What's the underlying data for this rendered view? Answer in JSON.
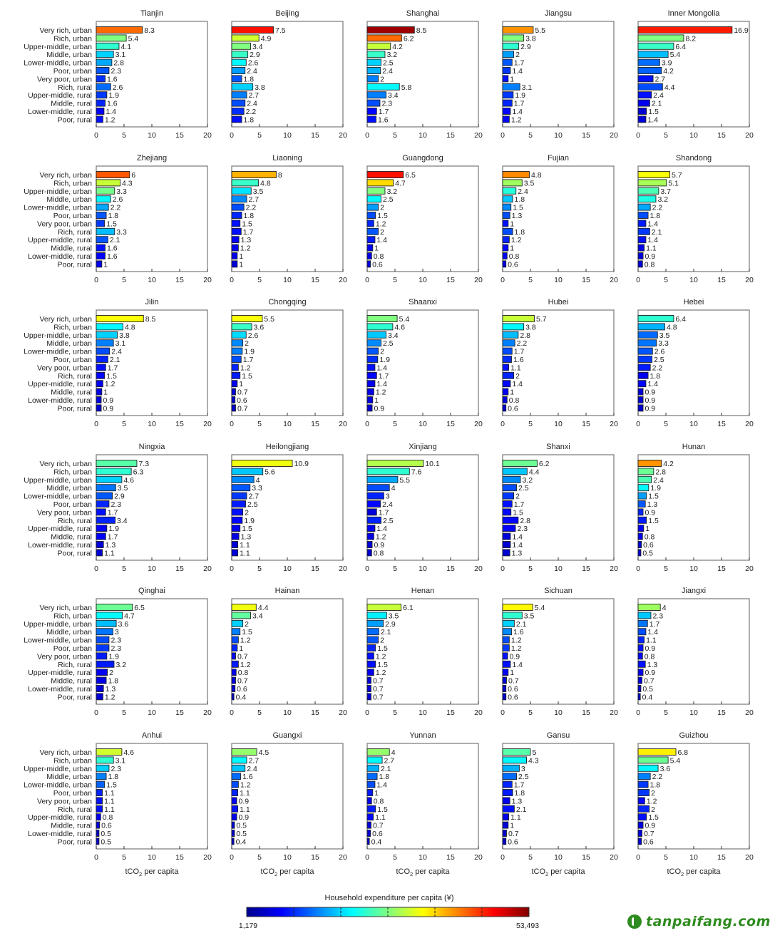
{
  "chart_data": {
    "type": "bar",
    "orientation": "horizontal",
    "categories": [
      "Very rich, urban",
      "Rich, urban",
      "Upper-middle, urban",
      "Middle, urban",
      "Lower-middle, urban",
      "Poor, urban",
      "Very poor, urban",
      "Rich, rural",
      "Upper-middle, rural",
      "Middle, rural",
      "Lower-middle, rural",
      "Poor, rural"
    ],
    "xlim": [
      0,
      20
    ],
    "xticks": [
      "0",
      "5",
      "10",
      "15",
      "20"
    ],
    "xlabel": "tCO₂ per capita",
    "panels": [
      {
        "title": "Tianjin",
        "values": [
          8.3,
          5.4,
          4.1,
          3.1,
          2.8,
          2.3,
          1.6,
          2.6,
          1.9,
          1.6,
          1.4,
          1.2
        ],
        "color_levels": [
          0.77,
          0.5,
          0.42,
          0.33,
          0.29,
          0.21,
          0.17,
          0.23,
          0.18,
          0.16,
          0.12,
          0.14
        ]
      },
      {
        "title": "Beijing",
        "values": [
          7.5,
          4.9,
          3.4,
          2.9,
          2.6,
          2.4,
          1.8,
          3.8,
          2.7,
          2.4,
          2.2,
          1.8
        ],
        "color_levels": [
          0.86,
          0.58,
          0.5,
          0.43,
          0.37,
          0.28,
          0.21,
          0.33,
          0.25,
          0.2,
          0.17,
          0.14
        ]
      },
      {
        "title": "Shanghai",
        "values": [
          8.5,
          6.2,
          4.2,
          3.2,
          2.5,
          2.4,
          2,
          5.8,
          3.4,
          2.3,
          1.7,
          1.6
        ],
        "color_levels": [
          0.97,
          0.77,
          0.57,
          0.43,
          0.33,
          0.3,
          0.25,
          0.37,
          0.25,
          0.2,
          0.13,
          0.14
        ]
      },
      {
        "title": "Jiangsu",
        "values": [
          5.5,
          3.8,
          2.9,
          2,
          1.7,
          1.4,
          1,
          3.1,
          1.9,
          1.7,
          1.4,
          1.2
        ],
        "color_levels": [
          0.73,
          0.5,
          0.42,
          0.28,
          0.21,
          0.18,
          0.14,
          0.25,
          0.18,
          0.16,
          0.13,
          0.13
        ]
      },
      {
        "title": "Inner Mongolia",
        "values": [
          16.9,
          8.2,
          6.4,
          5.4,
          3.9,
          4.2,
          2.7,
          4.4,
          2.4,
          2.1,
          1.5,
          1.4
        ],
        "color_levels": [
          0.85,
          0.5,
          0.43,
          0.31,
          0.23,
          0.22,
          0.14,
          0.2,
          0.14,
          0.11,
          0.08,
          0.09
        ]
      },
      {
        "title": "Zhejiang",
        "values": [
          6,
          4.3,
          3.3,
          2.6,
          2.2,
          1.8,
          1.5,
          3.3,
          2.1,
          1.6,
          1.6,
          1
        ],
        "color_levels": [
          0.79,
          0.57,
          0.49,
          0.37,
          0.29,
          0.21,
          0.18,
          0.31,
          0.21,
          0.14,
          0.12,
          0.11
        ]
      },
      {
        "title": "Liaoning",
        "values": [
          8,
          4.8,
          3.5,
          2.7,
          2.2,
          1.8,
          1.5,
          1.7,
          1.3,
          1.2,
          1,
          1
        ],
        "color_levels": [
          0.7,
          0.43,
          0.35,
          0.26,
          0.2,
          0.16,
          0.14,
          0.14,
          0.12,
          0.11,
          0.1,
          0.09
        ]
      },
      {
        "title": "Guangdong",
        "values": [
          6.5,
          4.7,
          3.2,
          2.5,
          2,
          1.5,
          1.2,
          2,
          1.4,
          1,
          0.8,
          0.6
        ],
        "color_levels": [
          0.86,
          0.66,
          0.5,
          0.37,
          0.28,
          0.2,
          0.16,
          0.21,
          0.15,
          0.11,
          0.1,
          0.09
        ]
      },
      {
        "title": "Fujian",
        "values": [
          4.8,
          3.5,
          2.4,
          1.8,
          1.5,
          1.3,
          1,
          1.8,
          1.2,
          1,
          0.8,
          0.6
        ],
        "color_levels": [
          0.74,
          0.53,
          0.41,
          0.32,
          0.26,
          0.2,
          0.14,
          0.2,
          0.16,
          0.13,
          0.11,
          0.1
        ]
      },
      {
        "title": "Shandong",
        "values": [
          5.7,
          5.1,
          3.7,
          3.2,
          2.2,
          1.8,
          1.4,
          2.1,
          1.4,
          1.1,
          0.9,
          0.8
        ],
        "color_levels": [
          0.62,
          0.54,
          0.45,
          0.4,
          0.29,
          0.2,
          0.15,
          0.18,
          0.14,
          0.1,
          0.09,
          0.09
        ]
      },
      {
        "title": "Jilin",
        "values": [
          8.5,
          4.8,
          3.8,
          3.1,
          2.4,
          2.1,
          1.7,
          1.5,
          1.2,
          1,
          0.9,
          0.9
        ],
        "color_levels": [
          0.62,
          0.37,
          0.33,
          0.25,
          0.2,
          0.16,
          0.14,
          0.13,
          0.11,
          0.1,
          0.09,
          0.08
        ]
      },
      {
        "title": "Chongqing",
        "values": [
          5.5,
          3.6,
          2.6,
          2,
          1.9,
          1.7,
          1.2,
          1.5,
          1,
          0.7,
          0.6,
          0.7
        ],
        "color_levels": [
          0.62,
          0.43,
          0.34,
          0.26,
          0.25,
          0.2,
          0.16,
          0.15,
          0.11,
          0.09,
          0.08,
          0.08
        ]
      },
      {
        "title": "Shaanxi",
        "values": [
          5.4,
          4.6,
          3.4,
          2.5,
          2,
          1.9,
          1.4,
          1.7,
          1.4,
          1.2,
          1,
          0.9
        ],
        "color_levels": [
          0.5,
          0.42,
          0.32,
          0.26,
          0.21,
          0.17,
          0.14,
          0.13,
          0.11,
          0.1,
          0.09,
          0.08
        ]
      },
      {
        "title": "Hubei",
        "values": [
          5.7,
          3.8,
          2.8,
          2.2,
          1.7,
          1.6,
          1.1,
          2,
          1.4,
          1,
          0.8,
          0.6
        ],
        "color_levels": [
          0.57,
          0.37,
          0.31,
          0.25,
          0.2,
          0.17,
          0.14,
          0.16,
          0.13,
          0.11,
          0.09,
          0.08
        ]
      },
      {
        "title": "Hebei",
        "values": [
          6.4,
          4.8,
          3.5,
          3.3,
          2.6,
          2.5,
          2.2,
          1.8,
          1.4,
          0.9,
          0.9,
          0.9
        ],
        "color_levels": [
          0.42,
          0.3,
          0.23,
          0.24,
          0.21,
          0.18,
          0.15,
          0.11,
          0.13,
          0.09,
          0.08,
          0.08
        ]
      },
      {
        "title": "Ningxia",
        "values": [
          7.3,
          6.3,
          4.6,
          3.5,
          2.9,
          2.3,
          1.7,
          3.4,
          1.9,
          1.7,
          1.3,
          1.1
        ],
        "color_levels": [
          0.46,
          0.42,
          0.33,
          0.24,
          0.21,
          0.16,
          0.14,
          0.16,
          0.12,
          0.12,
          0.09,
          0.08
        ]
      },
      {
        "title": "Heilongjiang",
        "values": [
          10.9,
          5.6,
          4,
          3.3,
          2.7,
          2.5,
          2,
          1.9,
          1.5,
          1.3,
          1.1,
          1.1
        ],
        "color_levels": [
          0.61,
          0.32,
          0.26,
          0.21,
          0.18,
          0.15,
          0.14,
          0.13,
          0.11,
          0.1,
          0.09,
          0.09
        ]
      },
      {
        "title": "Xinjiang",
        "values": [
          10.1,
          7.6,
          5.5,
          4,
          3,
          2.4,
          1.7,
          2.5,
          1.4,
          1.2,
          0.9,
          0.8
        ],
        "color_levels": [
          0.55,
          0.42,
          0.29,
          0.2,
          0.16,
          0.13,
          0.09,
          0.16,
          0.11,
          0.1,
          0.09,
          0.08
        ]
      },
      {
        "title": "Shanxi",
        "values": [
          6.2,
          4.4,
          3.2,
          2.5,
          2,
          1.7,
          1.5,
          2.8,
          2.3,
          1.4,
          1.4,
          1.3
        ],
        "color_levels": [
          0.48,
          0.32,
          0.26,
          0.2,
          0.18,
          0.14,
          0.13,
          0.13,
          0.12,
          0.09,
          0.08,
          0.08
        ]
      },
      {
        "title": "Hunan",
        "values": [
          4.2,
          2.8,
          2.4,
          1.9,
          1.5,
          1.3,
          0.9,
          1.5,
          1,
          0.8,
          0.6,
          0.5
        ],
        "color_levels": [
          0.73,
          0.48,
          0.45,
          0.37,
          0.28,
          0.21,
          0.16,
          0.15,
          0.12,
          0.11,
          0.09,
          0.08
        ]
      },
      {
        "title": "Qinghai",
        "values": [
          6.5,
          4.7,
          3.6,
          3,
          2.3,
          2.3,
          1.9,
          3.2,
          2,
          1.8,
          1.3,
          1.2
        ],
        "color_levels": [
          0.48,
          0.37,
          0.31,
          0.24,
          0.2,
          0.18,
          0.15,
          0.15,
          0.11,
          0.1,
          0.09,
          0.08
        ]
      },
      {
        "title": "Hainan",
        "values": [
          4.4,
          3.4,
          2,
          1.5,
          1.2,
          1,
          0.7,
          1.2,
          0.8,
          0.7,
          0.6,
          0.4
        ],
        "color_levels": [
          0.61,
          0.47,
          0.33,
          0.25,
          0.2,
          0.16,
          0.13,
          0.15,
          0.11,
          0.1,
          0.09,
          0.08
        ]
      },
      {
        "title": "Henan",
        "values": [
          6.1,
          3.5,
          2.9,
          2.1,
          2,
          1.5,
          1.2,
          1.5,
          1.2,
          0.7,
          0.7,
          0.7
        ],
        "color_levels": [
          0.57,
          0.36,
          0.28,
          0.23,
          0.21,
          0.16,
          0.14,
          0.14,
          0.11,
          0.09,
          0.08,
          0.08
        ]
      },
      {
        "title": "Sichuan",
        "values": [
          5.4,
          3.5,
          2.1,
          1.6,
          1.2,
          1.2,
          0.9,
          1.4,
          1,
          0.7,
          0.6,
          0.6
        ],
        "color_levels": [
          0.63,
          0.42,
          0.33,
          0.26,
          0.2,
          0.18,
          0.14,
          0.14,
          0.12,
          0.09,
          0.08,
          0.08
        ]
      },
      {
        "title": "Jiangxi",
        "values": [
          4,
          2.3,
          1.7,
          1.4,
          1.1,
          0.9,
          0.8,
          1.3,
          0.9,
          0.7,
          0.5,
          0.4
        ],
        "color_levels": [
          0.53,
          0.32,
          0.24,
          0.2,
          0.16,
          0.14,
          0.13,
          0.14,
          0.11,
          0.09,
          0.08,
          0.08
        ]
      },
      {
        "title": "Anhui",
        "values": [
          4.6,
          3.1,
          2.3,
          1.8,
          1.5,
          1.1,
          1.1,
          1.1,
          0.8,
          0.6,
          0.5,
          0.5
        ],
        "color_levels": [
          0.58,
          0.42,
          0.33,
          0.25,
          0.22,
          0.16,
          0.14,
          0.14,
          0.11,
          0.09,
          0.08,
          0.08
        ]
      },
      {
        "title": "Guangxi",
        "values": [
          4.5,
          2.7,
          2.4,
          1.6,
          1.2,
          1.1,
          0.9,
          1.1,
          0.9,
          0.5,
          0.5,
          0.4
        ],
        "color_levels": [
          0.52,
          0.37,
          0.32,
          0.23,
          0.2,
          0.16,
          0.13,
          0.14,
          0.11,
          0.09,
          0.08,
          0.08
        ]
      },
      {
        "title": "Yunnan",
        "values": [
          4,
          2.7,
          2.1,
          1.8,
          1.4,
          1,
          0.8,
          1.5,
          1.1,
          0.7,
          0.6,
          0.4
        ],
        "color_levels": [
          0.52,
          0.37,
          0.3,
          0.23,
          0.2,
          0.15,
          0.11,
          0.15,
          0.13,
          0.09,
          0.08,
          0.08
        ]
      },
      {
        "title": "Gansu",
        "values": [
          5,
          4.3,
          3,
          2.5,
          1.7,
          1.8,
          1.3,
          2.1,
          1.1,
          1,
          0.7,
          0.6
        ],
        "color_levels": [
          0.46,
          0.37,
          0.3,
          0.23,
          0.16,
          0.15,
          0.11,
          0.14,
          0.1,
          0.09,
          0.08,
          0.08
        ]
      },
      {
        "title": "Guizhou",
        "values": [
          6.8,
          5.4,
          3.6,
          2.2,
          1.8,
          2,
          1.2,
          2,
          1.5,
          0.9,
          0.7,
          0.6
        ],
        "color_levels": [
          0.64,
          0.48,
          0.37,
          0.25,
          0.18,
          0.18,
          0.13,
          0.16,
          0.14,
          0.1,
          0.09,
          0.08
        ]
      }
    ],
    "colorbar": {
      "title": "Household expenditure per capita (¥)",
      "min_label": "1,179",
      "max_label": "53,493",
      "colormap": "jet"
    }
  },
  "watermark": "tanpaifang.com"
}
